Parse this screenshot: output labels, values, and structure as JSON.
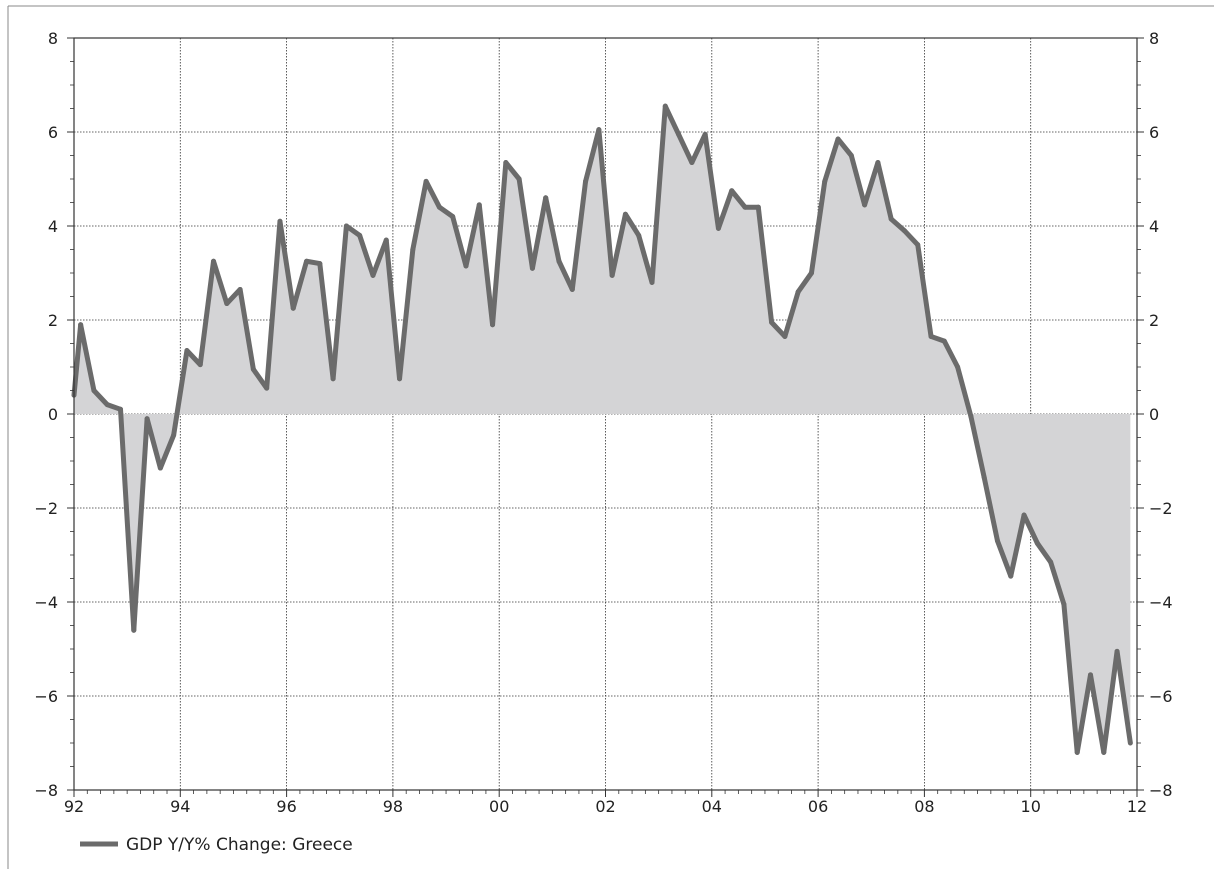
{
  "chart_data": {
    "type": "area",
    "title": "",
    "xlabel": "",
    "ylabel": "",
    "x_tick_labels": [
      "92",
      "94",
      "96",
      "98",
      "00",
      "02",
      "04",
      "06",
      "08",
      "10",
      "12"
    ],
    "y_tick_labels": [
      "8",
      "6",
      "4",
      "2",
      "0",
      "−2",
      "−4",
      "−6",
      "−8"
    ],
    "y_ticks": [
      8,
      6,
      4,
      2,
      0,
      -2,
      -4,
      -6,
      -8
    ],
    "xlim": [
      1992.0,
      2012.0
    ],
    "ylim": [
      -8,
      8
    ],
    "grid": true,
    "legend_position": "bottom-left",
    "colors": {
      "line": "#6b6b6b",
      "fill": "#d4d4d6",
      "grid": "#333333",
      "axis": "#333333"
    },
    "series": [
      {
        "name": "GDP Y/Y% Change: Greece",
        "x": [
          1992.0,
          1992.125,
          1992.375,
          1992.625,
          1992.875,
          1993.125,
          1993.375,
          1993.625,
          1993.875,
          1994.125,
          1994.375,
          1994.625,
          1994.875,
          1995.125,
          1995.375,
          1995.625,
          1995.875,
          1996.125,
          1996.375,
          1996.625,
          1996.875,
          1997.125,
          1997.375,
          1997.625,
          1997.875,
          1998.125,
          1998.375,
          1998.625,
          1998.875,
          1999.125,
          1999.375,
          1999.625,
          1999.875,
          2000.125,
          2000.375,
          2000.625,
          2000.875,
          2001.125,
          2001.375,
          2001.625,
          2001.875,
          2002.125,
          2002.375,
          2002.625,
          2002.875,
          2003.125,
          2003.375,
          2003.625,
          2003.875,
          2004.125,
          2004.375,
          2004.625,
          2004.875,
          2005.125,
          2005.375,
          2005.625,
          2005.875,
          2006.125,
          2006.375,
          2006.625,
          2006.875,
          2007.125,
          2007.375,
          2007.625,
          2007.875,
          2008.125,
          2008.375,
          2008.625,
          2008.875,
          2009.125,
          2009.375,
          2009.625,
          2009.875,
          2010.125,
          2010.375,
          2010.625,
          2010.875,
          2011.125,
          2011.375,
          2011.625,
          2011.875
        ],
        "values": [
          0.4,
          1.9,
          0.5,
          0.2,
          0.1,
          -4.6,
          -0.1,
          -1.15,
          -0.45,
          1.35,
          1.05,
          3.25,
          2.35,
          2.65,
          0.95,
          0.55,
          4.1,
          2.25,
          3.25,
          3.2,
          0.75,
          4.0,
          3.8,
          2.95,
          3.7,
          0.75,
          3.5,
          4.95,
          4.4,
          4.2,
          3.15,
          4.45,
          1.9,
          5.35,
          5.0,
          3.1,
          4.6,
          3.25,
          2.65,
          4.95,
          6.05,
          2.95,
          4.25,
          3.8,
          2.8,
          6.55,
          5.95,
          5.35,
          5.95,
          3.95,
          4.75,
          4.4,
          4.4,
          1.95,
          1.65,
          2.6,
          3.0,
          4.95,
          5.85,
          5.5,
          4.45,
          5.35,
          4.15,
          3.9,
          3.6,
          1.65,
          1.55,
          1.0,
          -0.05,
          -1.35,
          -2.7,
          -3.45,
          -2.15,
          -2.75,
          -3.15,
          -4.05,
          -7.2,
          -5.55,
          -7.2,
          -5.05,
          -7.0
        ]
      }
    ]
  }
}
